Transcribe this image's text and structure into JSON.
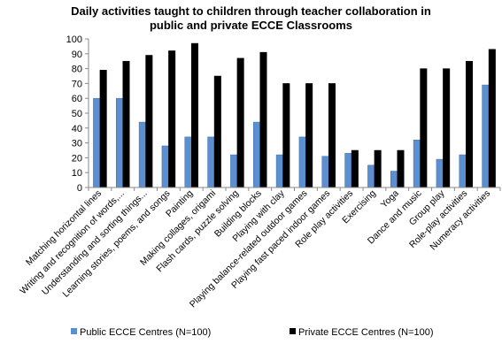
{
  "chart_data": {
    "type": "bar",
    "title_lines": [
      "Daily activities taught to children through teacher collaboration in",
      "public and private ECCE Classrooms"
    ],
    "xlabel": "",
    "ylabel": "",
    "ylim": [
      0,
      100
    ],
    "yticks": [
      0,
      10,
      20,
      30,
      40,
      50,
      60,
      70,
      80,
      90,
      100
    ],
    "grid": false,
    "legend_position": "bottom",
    "categories": [
      "Matching horizontal lines",
      "Writing and recognition of words,...",
      "Understanding and sorting things...",
      "Learning stories, poems, and songs",
      "Painting",
      "Making collages, origami",
      "Flash cards, puzzle solving",
      "Building blocks",
      "Playing with clay",
      "Playing balance-related outdoor games",
      "Playing fast paced indoor games",
      "Role play activities",
      "Exercising",
      "Yoga",
      "Dance and music",
      "Group play",
      "Role-play activities",
      "Numeracy activities"
    ],
    "series": [
      {
        "name": "Public ECCE Centres (N=100)",
        "color": "#5b8fd0",
        "values": [
          60,
          60,
          44,
          28,
          34,
          34,
          22,
          44,
          22,
          34,
          21,
          23,
          15,
          11,
          32,
          19,
          22,
          69
        ]
      },
      {
        "name": "Private ECCE Centres (N=100)",
        "color": "#000000",
        "values": [
          79,
          85,
          89,
          92,
          97,
          75,
          87,
          91,
          70,
          70,
          70,
          25,
          25,
          25,
          80,
          80,
          85,
          93
        ]
      }
    ]
  }
}
